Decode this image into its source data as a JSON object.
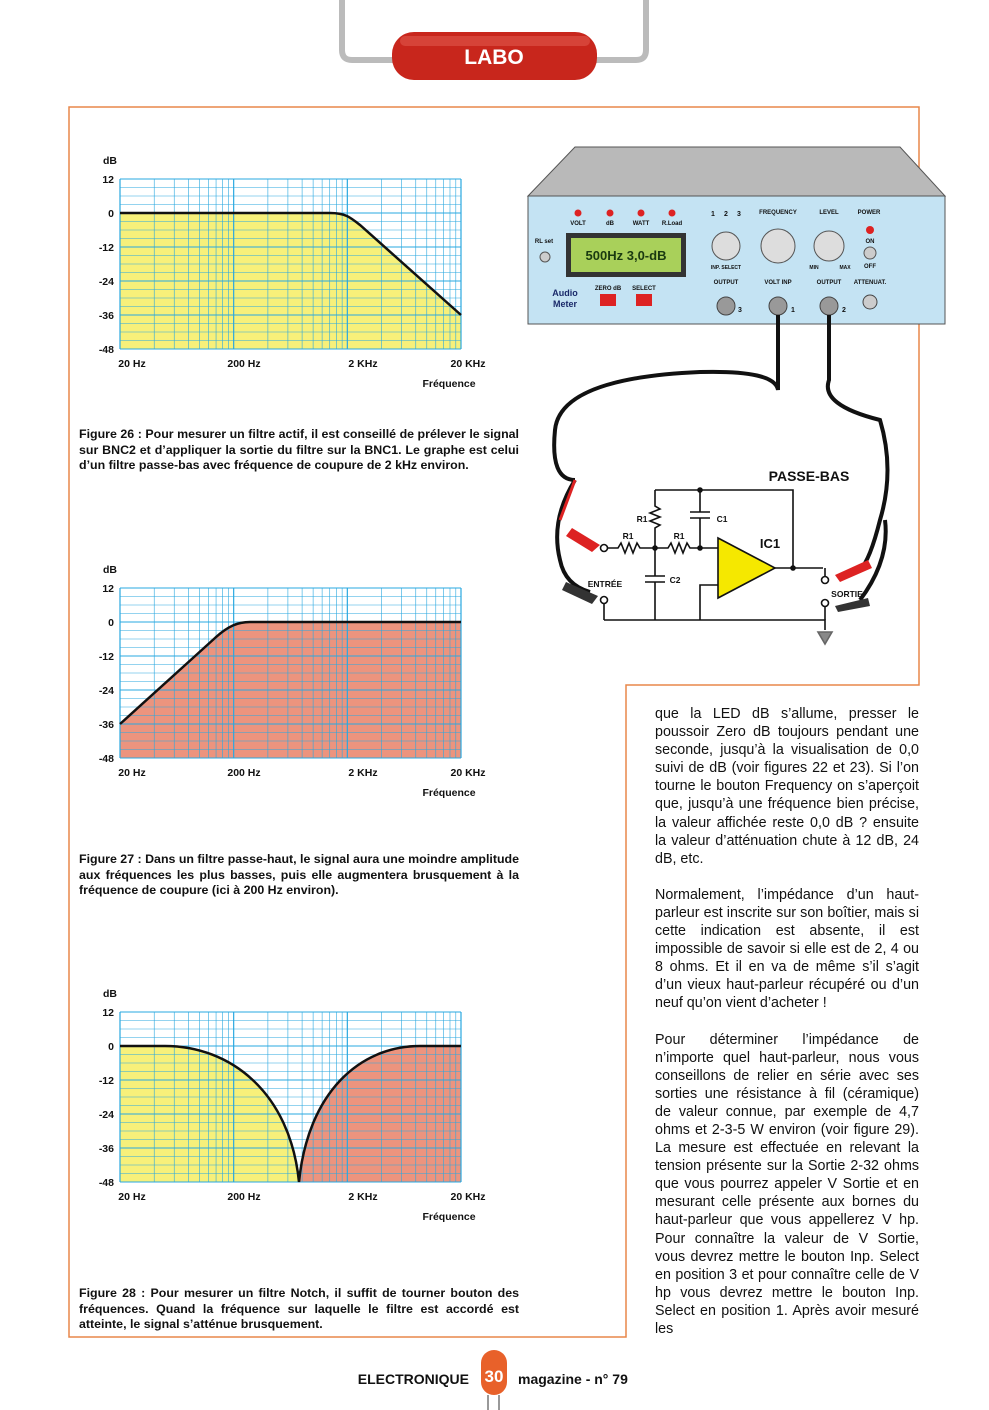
{
  "header": {
    "section": "LABO"
  },
  "figures": [
    {
      "y_label": "dB",
      "y_ticks": [
        "12",
        "0",
        "-12",
        "-24",
        "-36",
        "-48"
      ],
      "x_ticks": [
        "20 Hz",
        "200 Hz",
        "2 KHz",
        "20 KHz"
      ],
      "x_label": "Fréquence",
      "caption": "Figure 26 : Pour mesurer un filtre actif, il est conseillé de prélever le signal sur BNC2 et d’appliquer la sortie du filtre sur la BNC1. Le graphe est celui d’un filtre passe-bas avec fréquence de coupure de 2 kHz environ."
    },
    {
      "y_label": "dB",
      "y_ticks": [
        "12",
        "0",
        "-12",
        "-24",
        "-36",
        "-48"
      ],
      "x_ticks": [
        "20 Hz",
        "200 Hz",
        "2 KHz",
        "20 KHz"
      ],
      "x_label": "Fréquence",
      "caption": "Figure 27 : Dans un filtre passe-haut, le signal aura une moindre amplitude aux fréquences les plus basses, puis elle augmentera brusquement à la fréquence de coupure (ici à 200 Hz environ)."
    },
    {
      "y_label": "dB",
      "y_ticks": [
        "12",
        "0",
        "-12",
        "-24",
        "-36",
        "-48"
      ],
      "x_ticks": [
        "20 Hz",
        "200 Hz",
        "2 KHz",
        "20 KHz"
      ],
      "x_label": "Fréquence",
      "caption": "Figure 28 : Pour mesurer un filtre Notch, il suffit de tourner bouton des fréquences. Quand la fréquence sur laquelle le filtre est accordé est atteinte, le signal s’atténue brusquement."
    }
  ],
  "device": {
    "leds": [
      "VOLT",
      "dB",
      "WATT",
      "R.Load"
    ],
    "selector_positions": [
      "1",
      "2",
      "3"
    ],
    "frequency": "FREQUENCY",
    "level": "LEVEL",
    "power": "POWER",
    "on": "ON",
    "off": "OFF",
    "rl_set": "RL set",
    "display": "500Hz  3,0-dB",
    "inp_select": "INP. SELECT",
    "min": "MIN",
    "max": "MAX",
    "brand": [
      "Audio",
      "Meter"
    ],
    "zero_db": "ZERO dB",
    "select": "SELECT",
    "output_1": "OUTPUT",
    "volt_inp": "VOLT INP",
    "output_2": "OUTPUT",
    "attenuat": "ATTENUAT.",
    "bnc": [
      "3",
      "1",
      "2"
    ]
  },
  "circuit": {
    "title": "PASSE-BAS",
    "r1_a": "R1",
    "r1_b": "R1",
    "r1_c": "R1",
    "c1": "C1",
    "c2": "C2",
    "ic": "IC1",
    "input": "ENTRÉE",
    "output": "SORTIE"
  },
  "article": {
    "paragraphs": [
      "que la LED dB s’allume, presser le poussoir Zero dB toujours pendant une seconde, jusqu’à la visualisation de 0,0 suivi de dB (voir figures 22 et 23). Si l’on tourne le bouton Frequency on s’aperçoit que, jusqu’à une fréquence bien précise, la valeur affichée reste 0,0 dB ? ensuite la valeur d’atténuation chute à 12 dB, 24 dB, etc.",
      "Normalement, l’impédance d’un haut-parleur est inscrite sur son boîtier, mais si cette indication est absente, il est impossible de savoir si elle est de 2, 4 ou 8 ohms. Et il en va de même s’il s’agit d’un vieux haut-parleur récupéré ou d’un neuf qu’on vient d’acheter !",
      "Pour déterminer l’impédance de n’importe quel haut-parleur, nous vous conseillons de relier en série avec ses sorties une résistance à fil (céramique) de valeur connue, par exemple de 4,7 ohms et 2-3-5 W environ (voir figure 29). La mesure est effectuée en relevant la tension présente sur la Sortie 2-32 ohms que vous pourrez appeler V Sortie et en mesurant celle présente aux bornes du haut-parleur que vous appellerez V hp. Pour connaître la valeur de V Sortie, vous devrez mettre le bouton Inp. Select en position 3 et pour connaître celle de V hp vous devrez mettre le bouton Inp. Select en position 1. Après avoir mesuré les"
    ]
  },
  "footer": {
    "magazine": "ELECTRONIQUE",
    "page": "30",
    "issue": "magazine - n° 79"
  }
}
